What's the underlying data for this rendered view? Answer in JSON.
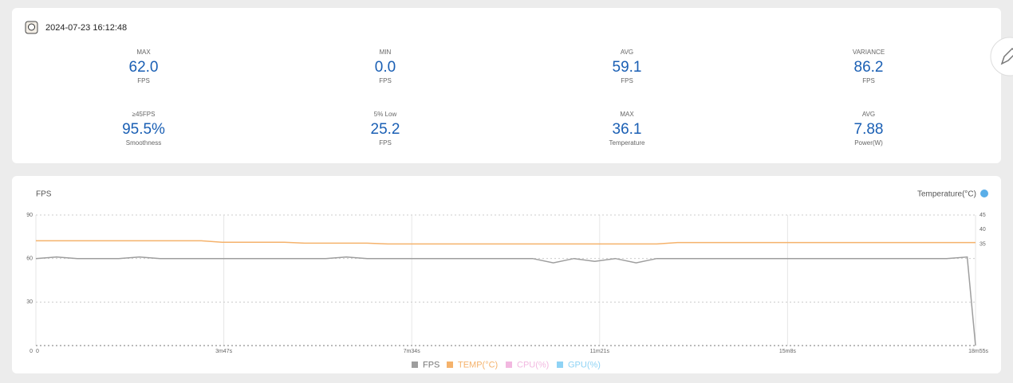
{
  "header": {
    "datetime": "2024-07-23 16:12:48"
  },
  "stats": [
    {
      "label": "MAX",
      "value": "62.0",
      "unit": "FPS"
    },
    {
      "label": "MIN",
      "value": "0.0",
      "unit": "FPS"
    },
    {
      "label": "AVG",
      "value": "59.1",
      "unit": "FPS"
    },
    {
      "label": "VARIANCE",
      "value": "86.2",
      "unit": "FPS"
    },
    {
      "label": "≥45FPS",
      "value": "95.5%",
      "unit": "Smoothness"
    },
    {
      "label": "5% Low",
      "value": "25.2",
      "unit": "FPS"
    },
    {
      "label": "MAX",
      "value": "36.1",
      "unit": "Temperature"
    },
    {
      "label": "AVG",
      "value": "7.88",
      "unit": "Power(W)"
    }
  ],
  "chart_data": {
    "type": "line",
    "ylabel": "FPS",
    "y2label": "Temperature(°C)",
    "x": [
      0,
      25,
      50,
      75,
      100,
      125,
      150,
      175,
      200,
      225,
      250,
      275,
      300,
      325,
      350,
      375,
      400,
      425,
      450,
      475,
      500,
      525,
      550,
      575,
      600,
      625,
      650,
      675,
      700,
      725,
      750,
      775,
      800,
      825,
      850,
      875,
      900,
      925,
      950,
      975,
      1000,
      1025,
      1050,
      1075,
      1100,
      1125,
      1135
    ],
    "xlim": [
      0,
      1135
    ],
    "xticks": [
      {
        "value": 0,
        "label": "0"
      },
      {
        "value": 227,
        "label": "3m47s"
      },
      {
        "value": 454,
        "label": "7m34s"
      },
      {
        "value": 681,
        "label": "11m21s"
      },
      {
        "value": 908,
        "label": "15m8s"
      },
      {
        "value": 1135,
        "label": "18m55s"
      }
    ],
    "ylim": [
      0,
      90
    ],
    "yticks": [
      0,
      30,
      60,
      90
    ],
    "y2lim": [
      0,
      45
    ],
    "y2ticks": [
      35,
      40,
      45
    ],
    "grid": true,
    "series": [
      {
        "name": "FPS",
        "color": "#9e9e9e",
        "values": [
          60,
          61,
          60,
          60,
          60,
          61,
          60,
          60,
          60,
          60,
          60,
          60,
          60,
          60,
          60,
          61,
          60,
          60,
          60,
          60,
          60,
          60,
          60,
          60,
          60,
          57,
          60,
          58,
          60,
          57,
          60,
          60,
          60,
          60,
          60,
          60,
          60,
          60,
          60,
          60,
          60,
          60,
          60,
          60,
          60,
          61,
          0
        ]
      },
      {
        "name": "TEMP(°C)",
        "color": "#f5b26b",
        "axis": "y2",
        "values": [
          36.1,
          36.1,
          36.1,
          36.1,
          36.1,
          36.1,
          36.1,
          36.1,
          36.1,
          35.6,
          35.6,
          35.6,
          35.6,
          35.3,
          35.3,
          35.3,
          35.3,
          35.0,
          35.0,
          35.0,
          35.0,
          35.0,
          35.0,
          35.0,
          35.0,
          35.0,
          35.0,
          35.0,
          35.0,
          35.0,
          35.0,
          35.5,
          35.5,
          35.5,
          35.5,
          35.5,
          35.5,
          35.5,
          35.5,
          35.5,
          35.5,
          35.5,
          35.5,
          35.5,
          35.5,
          35.5,
          35.5
        ]
      },
      {
        "name": "CPU(%)",
        "color": "#f2b8e0",
        "values": [
          null,
          null,
          null,
          null,
          null,
          null,
          null,
          null,
          null,
          null,
          null,
          null,
          null,
          null,
          null,
          null,
          null,
          null,
          null,
          null,
          null,
          null,
          null,
          null,
          null,
          null,
          null,
          null,
          null,
          null,
          null,
          null,
          null,
          null,
          null,
          null,
          null,
          null,
          null,
          null,
          null,
          null,
          null,
          null,
          null,
          null,
          null
        ]
      },
      {
        "name": "GPU(%)",
        "color": "#8fd3f5",
        "values": [
          null,
          null,
          null,
          null,
          null,
          null,
          null,
          null,
          null,
          null,
          null,
          null,
          null,
          null,
          null,
          null,
          null,
          null,
          null,
          null,
          null,
          null,
          null,
          null,
          null,
          null,
          null,
          null,
          null,
          null,
          null,
          null,
          null,
          null,
          null,
          null,
          null,
          null,
          null,
          null,
          null,
          null,
          null,
          null,
          null,
          null,
          null
        ]
      }
    ]
  }
}
